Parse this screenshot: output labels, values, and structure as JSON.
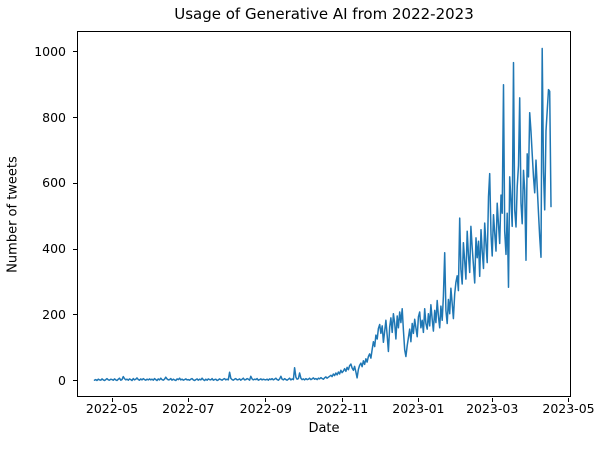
{
  "figure": {
    "background": "#ffffff",
    "spine_color": "#000000"
  },
  "chart_data": {
    "type": "line",
    "title": "Usage of Generative AI from 2022-2023",
    "xlabel": "Date",
    "ylabel": "Number of tweets",
    "grid": false,
    "legend": "none",
    "xlim": [
      "2022-04-03",
      "2023-05-03"
    ],
    "ylim": [
      -51,
      1063
    ],
    "y_ticks": [
      0,
      200,
      400,
      600,
      800,
      1000
    ],
    "x_ticks": [
      {
        "date": "2022-05-01",
        "label": "2022-05"
      },
      {
        "date": "2022-07-01",
        "label": "2022-07"
      },
      {
        "date": "2022-09-01",
        "label": "2022-09"
      },
      {
        "date": "2022-11-01",
        "label": "2022-11"
      },
      {
        "date": "2023-01-01",
        "label": "2023-01"
      },
      {
        "date": "2023-03-01",
        "label": "2023-03"
      },
      {
        "date": "2023-05-01",
        "label": "2023-05"
      }
    ],
    "series": [
      {
        "name": "Number of tweets",
        "color": "#1f77b4",
        "start_date": "2022-04-17",
        "frequency": "daily",
        "values": [
          3,
          5,
          2,
          6,
          4,
          3,
          7,
          4,
          2,
          5,
          8,
          4,
          3,
          6,
          5,
          3,
          7,
          4,
          2,
          6,
          9,
          3,
          5,
          14,
          8,
          4,
          6,
          3,
          7,
          5,
          2,
          8,
          4,
          6,
          10,
          5,
          3,
          7,
          4,
          8,
          5,
          3,
          6,
          4,
          7,
          4,
          6,
          3,
          8,
          5,
          2,
          7,
          4,
          9,
          5,
          3,
          6,
          12,
          7,
          4,
          5,
          8,
          3,
          6,
          4,
          2,
          7,
          5,
          9,
          4,
          6,
          3,
          5,
          7,
          4,
          5,
          3,
          6,
          8,
          4,
          2,
          5,
          7,
          3,
          6,
          4,
          9,
          5,
          2,
          6,
          3,
          7,
          5,
          4,
          8,
          3,
          5,
          6,
          2,
          4,
          7,
          5,
          3,
          6,
          8,
          4,
          6,
          4,
          27,
          9,
          5,
          3,
          6,
          8,
          4,
          5,
          7,
          3,
          6,
          9,
          4,
          5,
          8,
          6,
          3,
          15,
          7,
          4,
          6,
          5,
          8,
          3,
          5,
          7,
          4,
          6,
          5,
          4,
          6,
          3,
          7,
          5,
          8,
          4,
          6,
          9,
          5,
          3,
          7,
          15,
          6,
          4,
          8,
          5,
          3,
          6,
          9,
          4,
          7,
          5,
          41,
          12,
          6,
          8,
          25,
          9,
          5,
          7,
          4,
          8,
          5,
          6,
          9,
          5,
          7,
          10,
          6,
          8,
          5,
          9,
          7,
          11,
          8,
          6,
          10,
          13,
          9,
          12,
          15,
          18,
          14,
          22,
          17,
          25,
          19,
          28,
          22,
          33,
          26,
          31,
          38,
          30,
          42,
          35,
          47,
          52,
          40,
          33,
          45,
          28,
          10,
          36,
          48,
          55,
          44,
          62,
          51,
          68,
          58,
          75,
          83,
          70,
          95,
          120,
          105,
          140,
          128,
          160,
          172,
          145,
          168,
          118,
          152,
          185,
          138,
          90,
          165,
          192,
          148,
          205,
          175,
          128,
          198,
          162,
          210,
          178,
          220,
          155,
          95,
          75,
          108,
          132,
          158,
          120,
          175,
          145,
          188,
          162,
          135,
          195,
          210,
          162,
          185,
          148,
          220,
          175,
          158,
          205,
          168,
          232,
          188,
          152,
          215,
          178,
          245,
          198,
          162,
          228,
          185,
          258,
          390,
          215,
          175,
          248,
          205,
          282,
          235,
          190,
          265,
          300,
          320,
          275,
          495,
          340,
          295,
          420,
          365,
          310,
          455,
          385,
          330,
          470,
          405,
          350,
          298,
          435,
          375,
          425,
          318,
          460,
          395,
          342,
          480,
          415,
          360,
          560,
          630,
          445,
          380,
          505,
          450,
          395,
          540,
          475,
          418,
          565,
          510,
          900,
          455,
          385,
          510,
          285,
          620,
          548,
          470,
          967,
          520,
          468,
          590,
          655,
          860,
          540,
          478,
          640,
          580,
          367,
          690,
          620,
          815,
          758,
          690,
          620,
          572,
          671,
          590,
          510,
          438,
          376,
          1010,
          635,
          520,
          760,
          820,
          885,
          880,
          530
        ]
      }
    ]
  }
}
